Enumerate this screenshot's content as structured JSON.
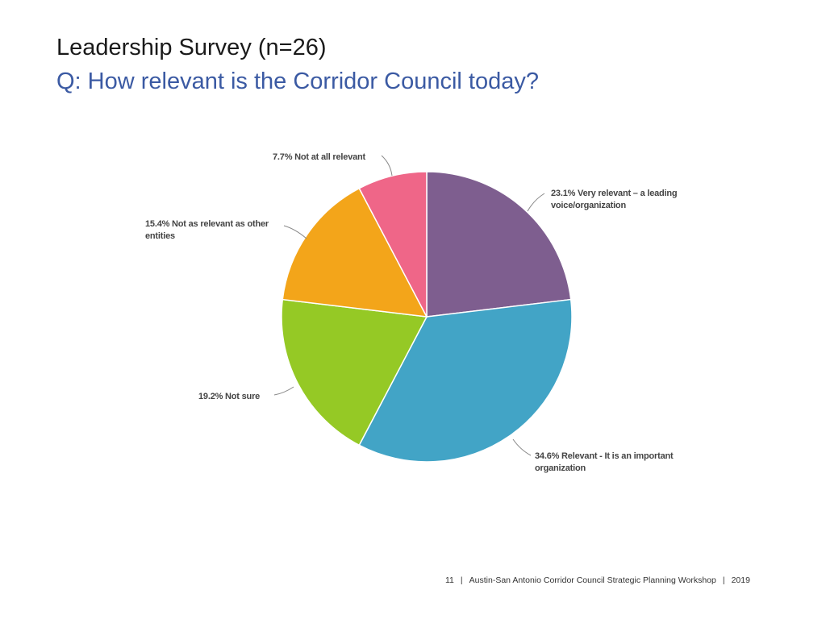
{
  "slide": {
    "title": "Leadership Survey (n=26)",
    "subtitle": "Q: How relevant is the Corridor Council today?"
  },
  "chart_data": {
    "type": "pie",
    "title": "Q: How relevant is the Corridor Council today?",
    "start_angle_deg": 0,
    "direction": "clockwise",
    "slices": [
      {
        "name": "Very relevant – a leading voice/organization",
        "pct_label": "23.1%",
        "value": 23.1,
        "color": "#7e5e8f",
        "label_line1": "23.1% Very relevant – a leading",
        "label_line2": "voice/organization"
      },
      {
        "name": "Relevant - It is an important organization",
        "pct_label": "34.6%",
        "value": 34.6,
        "color": "#42a4c6",
        "label_line1": "34.6% Relevant - It is an important",
        "label_line2": "organization"
      },
      {
        "name": "Not sure",
        "pct_label": "19.2%",
        "value": 19.2,
        "color": "#95c925",
        "label_line1": "19.2% Not sure",
        "label_line2": ""
      },
      {
        "name": "Not as relevant as other entities",
        "pct_label": "15.4%",
        "value": 15.4,
        "color": "#f3a51a",
        "label_line1": "15.4% Not as relevant as other",
        "label_line2": "entities"
      },
      {
        "name": "Not at all relevant",
        "pct_label": "7.7%",
        "value": 7.7,
        "color": "#ef6688",
        "label_line1": "7.7% Not at all relevant",
        "label_line2": ""
      }
    ]
  },
  "footer": {
    "page_number": "11",
    "separator": "|",
    "event": "Austin-San Antonio Corridor Council Strategic Planning Workshop",
    "year": "2019"
  }
}
